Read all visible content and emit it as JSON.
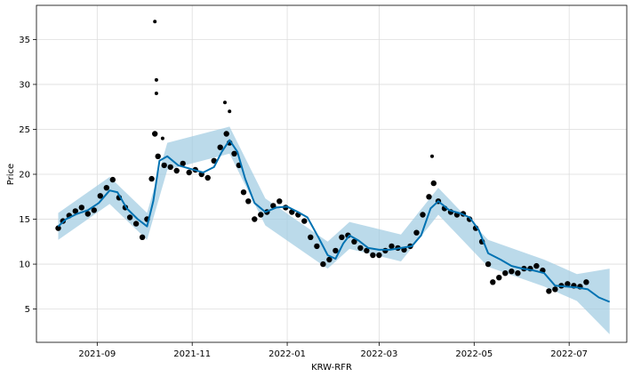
{
  "chart_data": {
    "type": "scatter",
    "title": "",
    "xlabel": "KRW-RFR",
    "ylabel": "Price",
    "xlim": [
      "2021-07-24",
      "2022-08-07"
    ],
    "ylim": [
      1.3,
      38.8
    ],
    "grid": true,
    "legend": "none",
    "x_ticks": [
      "2021-09",
      "2021-11",
      "2022-01",
      "2022-03",
      "2022-05",
      "2022-07"
    ],
    "y_ticks": [
      5,
      10,
      15,
      20,
      25,
      30,
      35
    ],
    "colors": {
      "points": "#000000",
      "forecast": "#0072b2",
      "interval": "#9ecae1",
      "grid": "#dddddd"
    },
    "series": [
      {
        "kind": "observed",
        "x": [
          "2021-08-07",
          "2021-08-10",
          "2021-08-14",
          "2021-08-18",
          "2021-08-22",
          "2021-08-26",
          "2021-08-30",
          "2021-09-03",
          "2021-09-07",
          "2021-09-11",
          "2021-09-15",
          "2021-09-19",
          "2021-09-22",
          "2021-09-26",
          "2021-09-30",
          "2021-10-03",
          "2021-10-06",
          "2021-10-08",
          "2021-10-10",
          "2021-10-14",
          "2021-10-18",
          "2021-10-22",
          "2021-10-26",
          "2021-10-30",
          "2021-11-03",
          "2021-11-07",
          "2021-11-11",
          "2021-11-15",
          "2021-11-19",
          "2021-11-23",
          "2021-11-25",
          "2021-11-28",
          "2021-12-01",
          "2021-12-04",
          "2021-12-07",
          "2021-12-11",
          "2021-12-15",
          "2021-12-19",
          "2021-12-23",
          "2021-12-27",
          "2021-12-31",
          "2022-01-04",
          "2022-01-08",
          "2022-01-12",
          "2022-01-16",
          "2022-01-20",
          "2022-01-24",
          "2022-01-28",
          "2022-02-01",
          "2022-02-05",
          "2022-02-09",
          "2022-02-13",
          "2022-02-17",
          "2022-02-21",
          "2022-02-25",
          "2022-03-01",
          "2022-03-05",
          "2022-03-09",
          "2022-03-13",
          "2022-03-17",
          "2022-03-21",
          "2022-03-25",
          "2022-03-29",
          "2022-04-02",
          "2022-04-05",
          "2022-04-08",
          "2022-04-12",
          "2022-04-16",
          "2022-04-20",
          "2022-04-24",
          "2022-04-28",
          "2022-05-02",
          "2022-05-06",
          "2022-05-10",
          "2022-05-13",
          "2022-05-17",
          "2022-05-21",
          "2022-05-25",
          "2022-05-29",
          "2022-06-02",
          "2022-06-06",
          "2022-06-10",
          "2022-06-14",
          "2022-06-18",
          "2022-06-22",
          "2022-06-26",
          "2022-06-30",
          "2022-07-04",
          "2022-07-08",
          "2022-07-12"
        ],
        "y": [
          14.0,
          14.8,
          15.4,
          15.9,
          16.3,
          15.6,
          16.0,
          17.6,
          18.5,
          19.4,
          17.4,
          16.3,
          15.2,
          14.5,
          13.0,
          15.0,
          19.5,
          24.5,
          22.0,
          21.0,
          20.8,
          20.4,
          21.2,
          20.2,
          20.5,
          20.0,
          19.6,
          21.5,
          23.0,
          24.5,
          23.5,
          22.3,
          21.0,
          18.0,
          17.0,
          15.0,
          15.5,
          15.8,
          16.5,
          17.0,
          16.3,
          15.8,
          15.5,
          14.8,
          13.0,
          12.0,
          10.0,
          10.5,
          11.5,
          13.0,
          13.2,
          12.5,
          11.8,
          11.5,
          11.0,
          11.0,
          11.5,
          12.0,
          11.8,
          11.6,
          12.0,
          13.5,
          15.5,
          17.5,
          19.0,
          17.0,
          16.2,
          15.8,
          15.5,
          15.6,
          15.0,
          14.0,
          12.5,
          10.0,
          8.0,
          8.5,
          9.0,
          9.2,
          9.0,
          9.5,
          9.5,
          9.8,
          9.3,
          7.0,
          7.2,
          7.6,
          7.8,
          7.6,
          7.5,
          8.0
        ]
      },
      {
        "kind": "outliers",
        "x": [
          "2021-10-08",
          "2021-10-09",
          "2021-10-09",
          "2021-11-22",
          "2021-11-25",
          "2022-04-04",
          "2021-10-13"
        ],
        "y": [
          37.0,
          30.5,
          29.0,
          28.0,
          27.0,
          22.0,
          24.0
        ]
      },
      {
        "kind": "forecast",
        "x": [
          "2021-08-07",
          "2021-08-12",
          "2021-08-19",
          "2021-08-26",
          "2021-09-02",
          "2021-09-09",
          "2021-09-14",
          "2021-09-20",
          "2021-09-27",
          "2021-10-03",
          "2021-10-07",
          "2021-10-11",
          "2021-10-16",
          "2021-10-23",
          "2021-10-31",
          "2021-11-08",
          "2021-11-15",
          "2021-11-20",
          "2021-11-25",
          "2021-11-30",
          "2021-12-05",
          "2021-12-11",
          "2021-12-18",
          "2021-12-25",
          "2022-01-01",
          "2022-01-08",
          "2022-01-14",
          "2022-01-21",
          "2022-01-27",
          "2022-02-01",
          "2022-02-06",
          "2022-02-10",
          "2022-02-16",
          "2022-02-22",
          "2022-03-01",
          "2022-03-08",
          "2022-03-15",
          "2022-03-22",
          "2022-03-28",
          "2022-04-03",
          "2022-04-08",
          "2022-04-15",
          "2022-04-23",
          "2022-04-28",
          "2022-05-04",
          "2022-05-10",
          "2022-05-18",
          "2022-05-25",
          "2022-06-01",
          "2022-06-08",
          "2022-06-15",
          "2022-06-22",
          "2022-06-29",
          "2022-07-06",
          "2022-07-13",
          "2022-07-20",
          "2022-07-27"
        ],
        "y": [
          14.2,
          15.0,
          15.6,
          16.0,
          16.8,
          18.2,
          18.0,
          16.2,
          15.0,
          14.2,
          17.0,
          21.5,
          22.0,
          21.0,
          20.6,
          20.2,
          20.8,
          22.5,
          23.8,
          22.5,
          19.5,
          16.8,
          15.8,
          16.3,
          16.4,
          15.8,
          15.2,
          13.0,
          11.0,
          10.6,
          12.3,
          13.2,
          12.6,
          11.8,
          11.6,
          11.6,
          11.8,
          12.0,
          13.2,
          16.2,
          17.0,
          16.0,
          15.6,
          15.2,
          13.8,
          11.2,
          10.5,
          9.8,
          9.5,
          9.3,
          9.0,
          7.6,
          7.5,
          7.4,
          7.2,
          6.3,
          5.8
        ]
      },
      {
        "kind": "interval",
        "x": [
          "2021-08-07",
          "2021-09-09",
          "2021-10-03",
          "2021-10-16",
          "2021-11-25",
          "2021-12-18",
          "2022-01-27",
          "2022-02-10",
          "2022-03-15",
          "2022-04-08",
          "2022-05-10",
          "2022-06-15",
          "2022-07-06",
          "2022-07-27"
        ],
        "upper": [
          15.7,
          19.7,
          15.7,
          23.5,
          25.3,
          17.3,
          12.5,
          14.7,
          13.3,
          18.5,
          12.7,
          10.5,
          8.9,
          9.5
        ],
        "lower": [
          12.7,
          16.7,
          12.7,
          20.5,
          22.3,
          14.3,
          9.5,
          11.7,
          10.3,
          15.5,
          9.7,
          7.5,
          5.9,
          2.2
        ]
      }
    ]
  }
}
